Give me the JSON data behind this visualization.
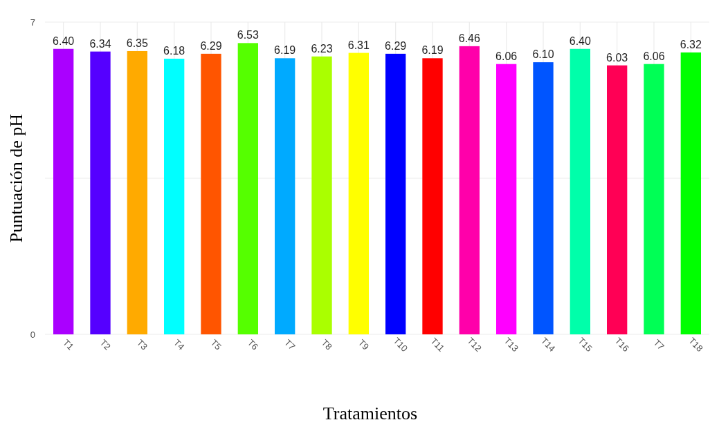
{
  "chart_data": {
    "type": "bar",
    "xlabel": "Tratamientos",
    "ylabel": "Puntuación de pH",
    "categories": [
      "T1",
      "T2",
      "T3",
      "T4",
      "T5",
      "T6",
      "T7",
      "T8",
      "T9",
      "T10",
      "T11",
      "T12",
      "T13",
      "T14",
      "T15",
      "T16",
      "T7",
      "T18"
    ],
    "values": [
      6.4,
      6.34,
      6.35,
      6.18,
      6.29,
      6.53,
      6.19,
      6.23,
      6.31,
      6.29,
      6.19,
      6.46,
      6.06,
      6.1,
      6.4,
      6.03,
      6.06,
      6.32
    ],
    "colors": [
      "#aa00ff",
      "#5500ff",
      "#ffaa00",
      "#00ffff",
      "#ff5500",
      "#55ff00",
      "#00aaff",
      "#aaff00",
      "#ffff00",
      "#0000ff",
      "#ff0000",
      "#ff00aa",
      "#ff00ff",
      "#0055ff",
      "#00ffaa",
      "#ff0055",
      "#00ff55",
      "#00ff00"
    ],
    "value_labels": [
      "6.40",
      "6.34",
      "6.35",
      "6.18",
      "6.29",
      "6.53",
      "6.19",
      "6.23",
      "6.31",
      "6.29",
      "6.19",
      "6.46",
      "6.06",
      "6.10",
      "6.40",
      "6.03",
      "6.06",
      "6.32"
    ],
    "ylim": [
      0,
      7
    ],
    "yticks": [
      0,
      {
        "value": 3.5,
        "label": null
      },
      7
    ],
    "grid": true
  }
}
